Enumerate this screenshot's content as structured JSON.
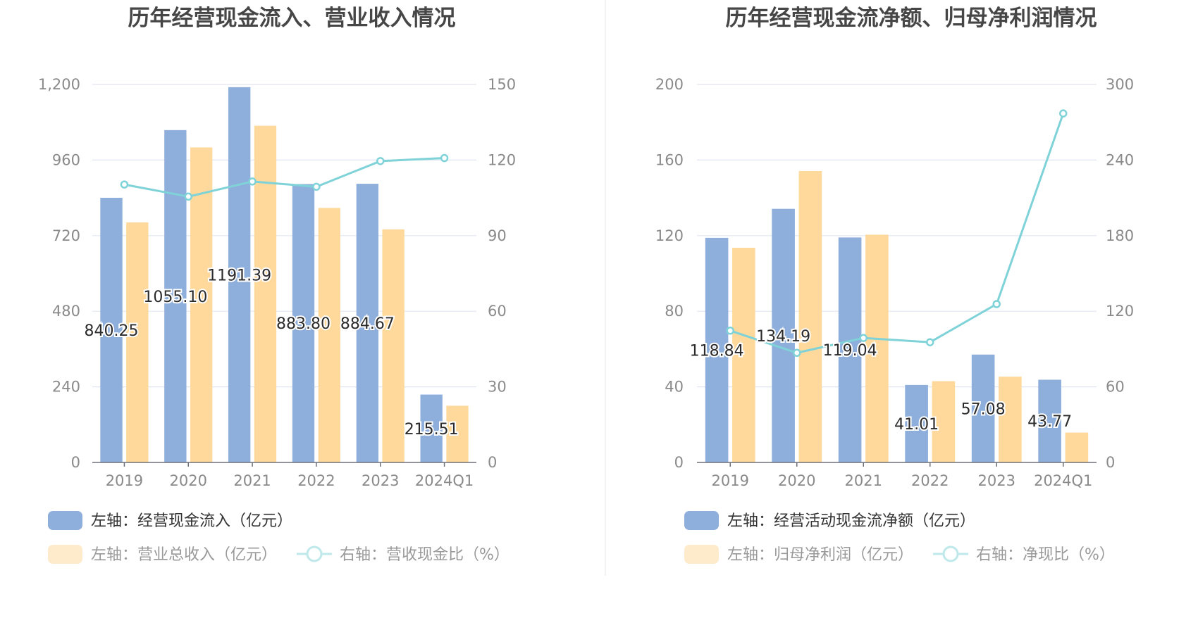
{
  "colors": {
    "bar1": "#8eaedb",
    "bar2": "#fed99b",
    "bar2_legend": "#fdebcc",
    "line": "#7fd3d8",
    "grid": "#e0e6f1",
    "axis": "#6e7079",
    "divider": "#eeeeee"
  },
  "chart_data": [
    {
      "type": "bar+line",
      "title": "历年经营现金流入、营业收入情况",
      "categories": [
        "2019",
        "2020",
        "2021",
        "2022",
        "2023",
        "2024Q1"
      ],
      "left_axis": {
        "range": [
          0,
          1200
        ],
        "ticks": [
          "0",
          "240",
          "480",
          "720",
          "960",
          "1,200"
        ]
      },
      "right_axis": {
        "range": [
          0,
          150
        ],
        "ticks": [
          "0",
          "30",
          "60",
          "90",
          "120",
          "150"
        ]
      },
      "grid": true,
      "legend_placement": "bottom-left",
      "series": [
        {
          "name": "左轴：经营现金流入（亿元）",
          "type": "bar",
          "axis": "left",
          "values": [
            840.25,
            1055.1,
            1191.39,
            883.8,
            884.67,
            215.51
          ],
          "labels": [
            "840.25",
            "1055.10",
            "1191.39",
            "883.80",
            "884.67",
            "215.51"
          ]
        },
        {
          "name": "左轴：营业总收入（亿元）",
          "type": "bar",
          "axis": "left",
          "values": [
            762,
            1000,
            1069,
            808,
            740,
            180
          ]
        },
        {
          "name": "右轴：营收现金比（%）",
          "type": "line",
          "axis": "right",
          "values": [
            110.3,
            105.5,
            111.5,
            109.4,
            119.6,
            120.8
          ]
        }
      ]
    },
    {
      "type": "bar+line",
      "title": "历年经营现金流净额、归母净利润情况",
      "categories": [
        "2019",
        "2020",
        "2021",
        "2022",
        "2023",
        "2024Q1"
      ],
      "left_axis": {
        "range": [
          0,
          200
        ],
        "ticks": [
          "0",
          "40",
          "80",
          "120",
          "160",
          "200"
        ]
      },
      "right_axis": {
        "range": [
          0,
          300
        ],
        "ticks": [
          "0",
          "60",
          "120",
          "180",
          "240",
          "300"
        ]
      },
      "grid": true,
      "legend_placement": "bottom-left",
      "series": [
        {
          "name": "左轴：经营活动现金流净额（亿元）",
          "type": "bar",
          "axis": "left",
          "values": [
            118.84,
            134.19,
            119.04,
            41.01,
            57.08,
            43.77
          ],
          "labels": [
            "118.84",
            "134.19",
            "119.04",
            "41.01",
            "57.08",
            "43.77"
          ]
        },
        {
          "name": "左轴：归母净利润（亿元）",
          "type": "bar",
          "axis": "left",
          "values": [
            113.6,
            154.2,
            120.5,
            43.0,
            45.4,
            15.8
          ]
        },
        {
          "name": "右轴：净现比（%）",
          "type": "line",
          "axis": "right",
          "values": [
            104.6,
            87.0,
            98.8,
            95.4,
            125.7,
            277.0
          ]
        }
      ]
    }
  ]
}
